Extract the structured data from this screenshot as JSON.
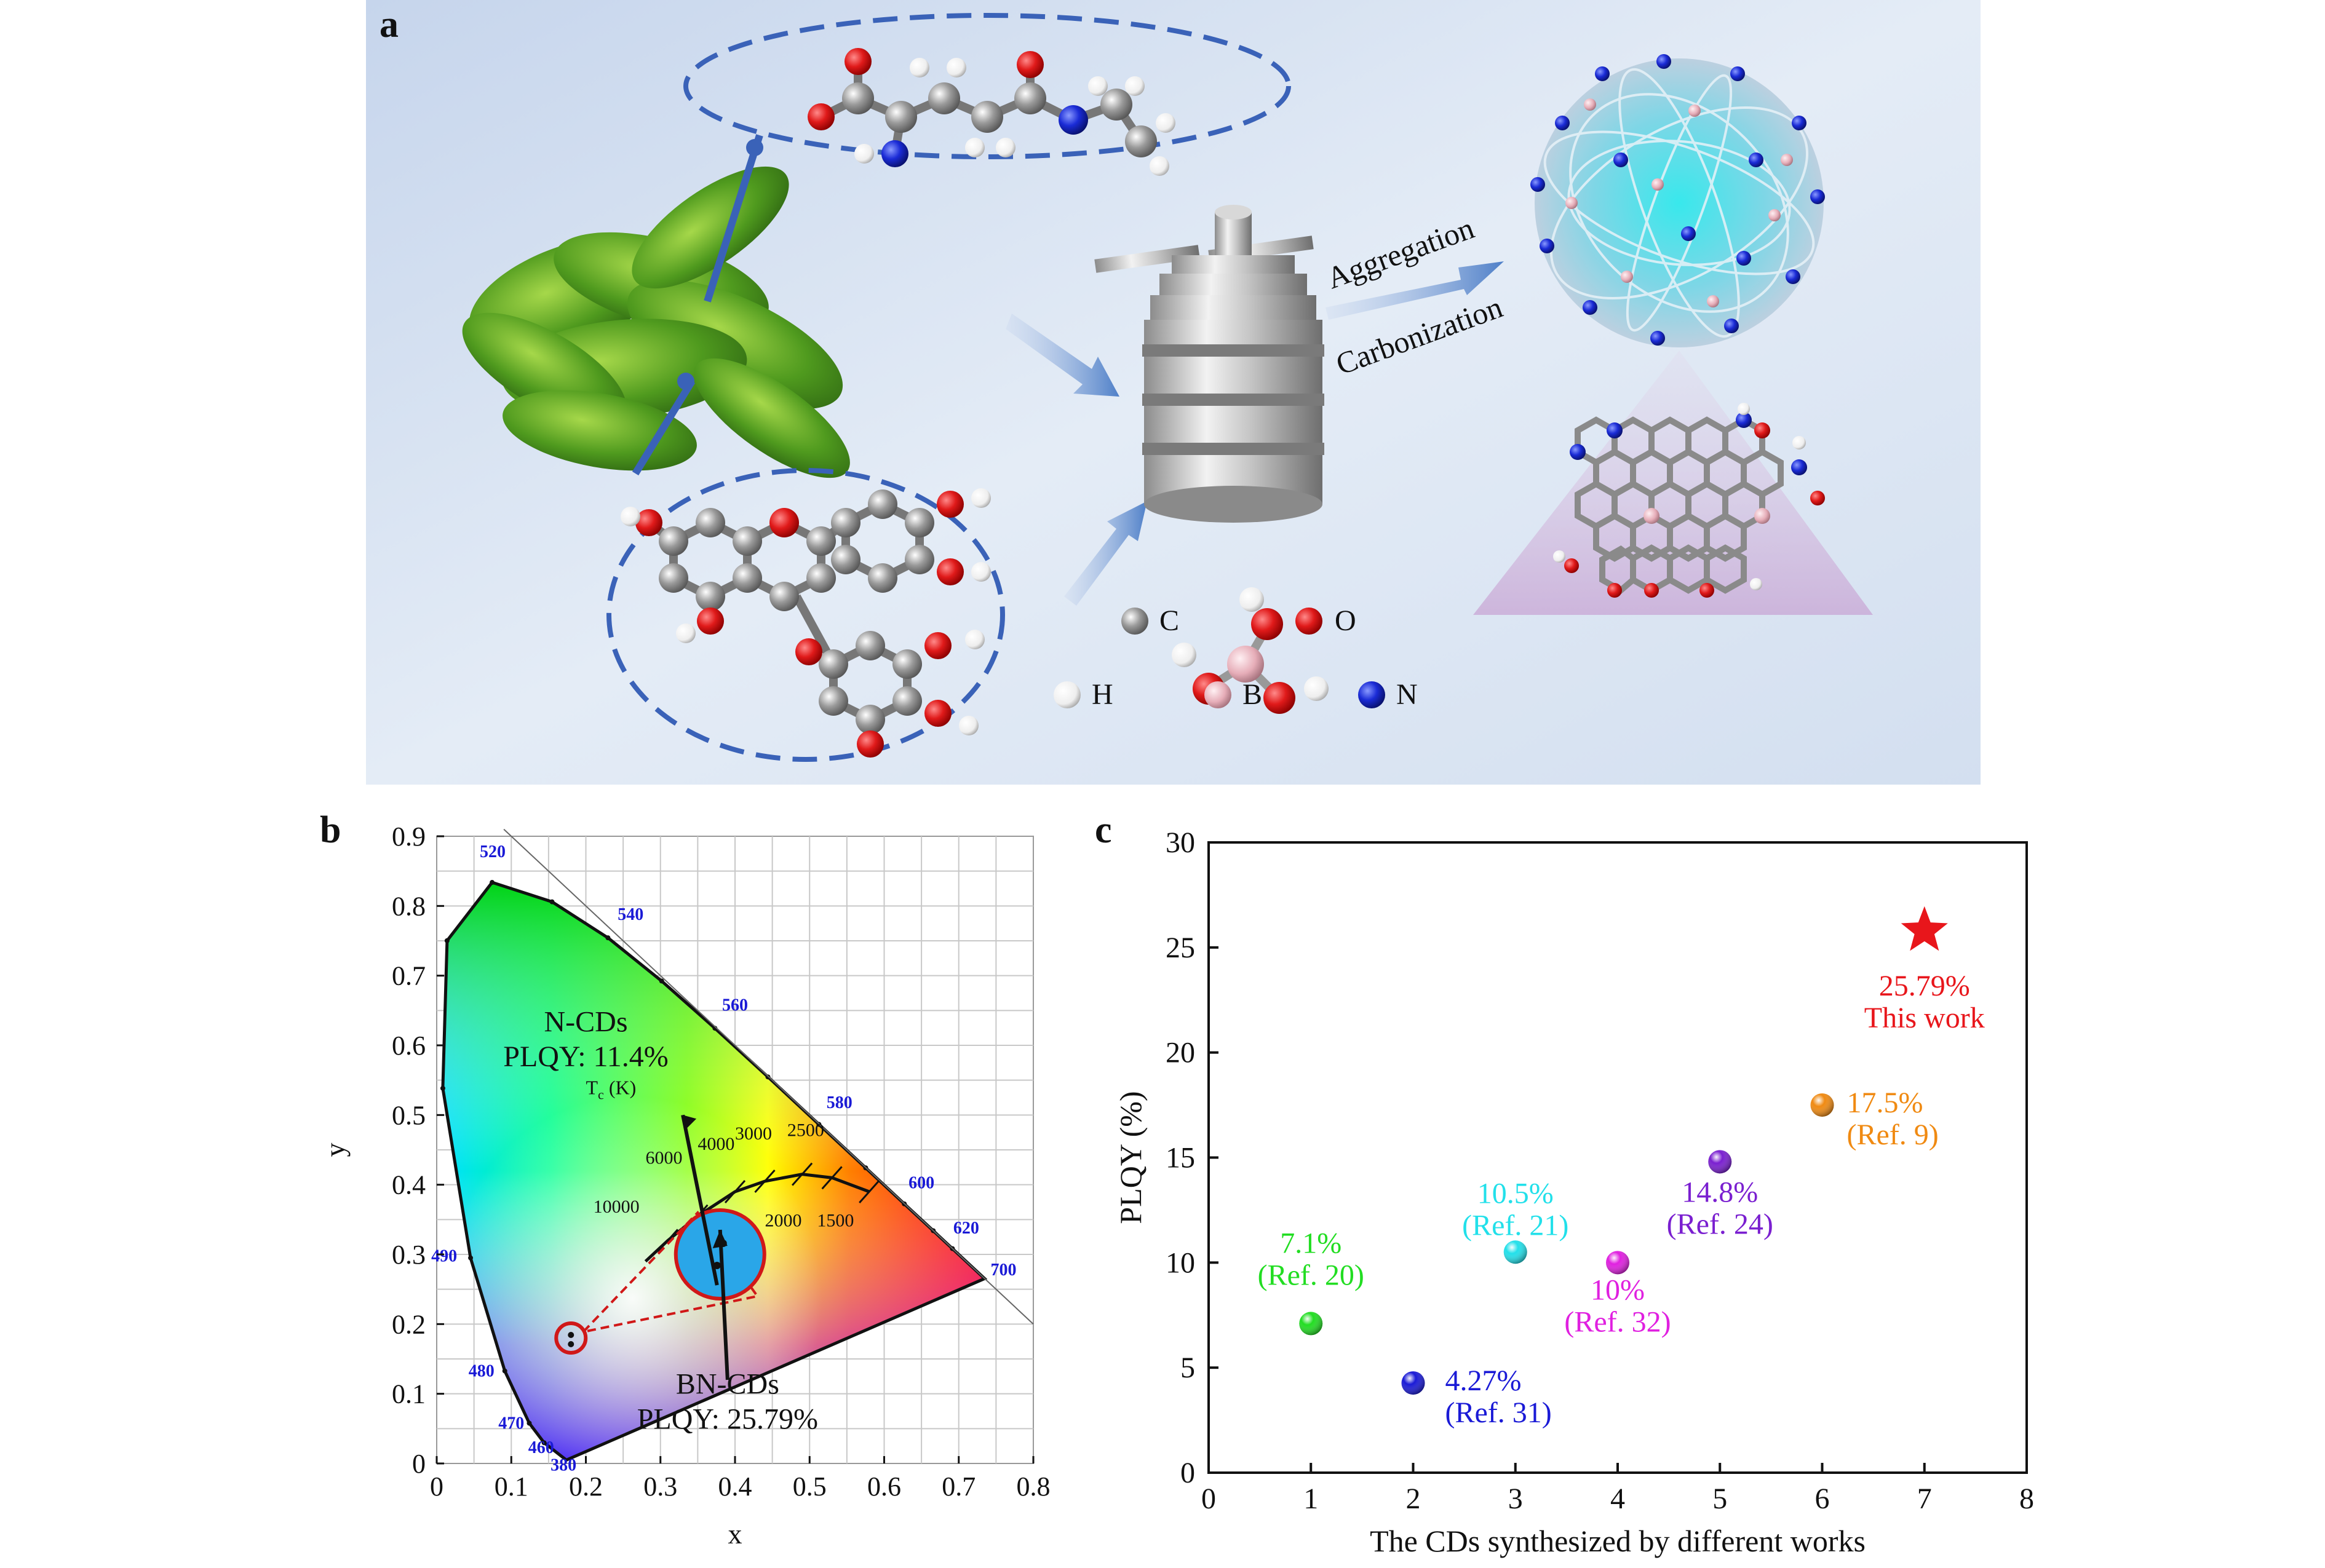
{
  "panel_a": {
    "label": "a",
    "process_labels": [
      "Aggregation",
      "Carbonization"
    ],
    "legend": [
      {
        "symbol": "C",
        "color": "#8a8a8a"
      },
      {
        "symbol": "O",
        "color": "#d8161b"
      },
      {
        "symbol": "H",
        "color": "#f2f2f2"
      },
      {
        "symbol": "B",
        "color": "#e9b3bd"
      },
      {
        "symbol": "N",
        "color": "#1a2bd6"
      }
    ]
  },
  "panel_b": {
    "label": "b",
    "xlabel": "x",
    "ylabel": "y",
    "xticks": [
      "0",
      "0.1",
      "0.2",
      "0.3",
      "0.4",
      "0.5",
      "0.6",
      "0.7",
      "0.8"
    ],
    "yticks": [
      "0",
      "0.1",
      "0.2",
      "0.3",
      "0.4",
      "0.5",
      "0.6",
      "0.7",
      "0.8",
      "0.9"
    ],
    "wavelengths": [
      "380",
      "460",
      "470",
      "480",
      "490",
      "520",
      "540",
      "560",
      "580",
      "600",
      "620",
      "700"
    ],
    "tc_label": "T",
    "tc_sub": "c",
    "tc_unit": "(K)",
    "temperatures": [
      "10000",
      "6000",
      "4000",
      "3000",
      "2500",
      "2000",
      "1500"
    ],
    "n_cds": {
      "name": "N-CDs",
      "plqy": "PLQY: 11.4%",
      "x": 0.18,
      "y": 0.18
    },
    "bn_cds": {
      "name": "BN-CDs",
      "plqy": "PLQY: 25.79%",
      "x": 0.38,
      "y": 0.3
    }
  },
  "chart_data": {
    "type": "scatter",
    "title": "",
    "panel_label": "c",
    "xlabel": "The CDs synthesized by different works",
    "ylabel": "PLQY (%)",
    "xlim": [
      0,
      8
    ],
    "ylim": [
      0,
      30
    ],
    "xticks": [
      "0",
      "1",
      "2",
      "3",
      "4",
      "5",
      "6",
      "7",
      "8"
    ],
    "yticks": [
      "0",
      "5",
      "10",
      "15",
      "20",
      "25",
      "30"
    ],
    "points": [
      {
        "x": 1,
        "y": 7.1,
        "value_label": "7.1%",
        "ref_label": "(Ref. 20)",
        "color": "#22dd22",
        "marker": "sphere"
      },
      {
        "x": 2,
        "y": 4.27,
        "value_label": "4.27%",
        "ref_label": "(Ref. 31)",
        "color": "#1a1ad6",
        "marker": "sphere"
      },
      {
        "x": 3,
        "y": 10.5,
        "value_label": "10.5%",
        "ref_label": "(Ref. 21)",
        "color": "#22e0ea",
        "marker": "sphere"
      },
      {
        "x": 4,
        "y": 10,
        "value_label": "10%",
        "ref_label": "(Ref. 32)",
        "color": "#e020e0",
        "marker": "sphere"
      },
      {
        "x": 5,
        "y": 14.8,
        "value_label": "14.8%",
        "ref_label": "(Ref. 24)",
        "color": "#7a1fd0",
        "marker": "sphere"
      },
      {
        "x": 6,
        "y": 17.5,
        "value_label": "17.5%",
        "ref_label": "(Ref. 9)",
        "color": "#f08a12",
        "marker": "sphere"
      },
      {
        "x": 7,
        "y": 25.79,
        "value_label": "25.79%",
        "ref_label": "This work",
        "color": "#e8161b",
        "marker": "star"
      }
    ]
  }
}
